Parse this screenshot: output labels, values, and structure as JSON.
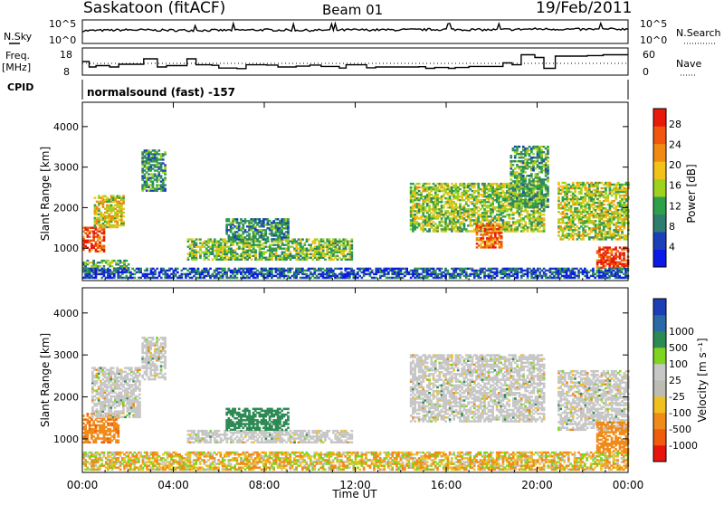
{
  "header": {
    "station": "Saskatoon (fitACF)",
    "beam": "Beam 01",
    "date": "19/Feb/2011"
  },
  "noise_panel": {
    "left_label": "N.Sky",
    "right_label": "N.Search",
    "ticks": [
      "10^5",
      "10^0"
    ]
  },
  "freq_panel": {
    "left_label_line1": "Freq.",
    "left_label_line2": "[MHz]",
    "right_label": "Nave",
    "left_ticks": [
      "18",
      "8"
    ],
    "right_ticks": [
      "60",
      "0"
    ]
  },
  "cpid": {
    "label": "CPID",
    "program": "normalsound (fast) -157"
  },
  "colors": {
    "power": [
      "#0b1ae6",
      "#1b3fb8",
      "#2f7d6e",
      "#2fa04a",
      "#9ed21f",
      "#f0c21a",
      "#f08a12",
      "#f0560c",
      "#e81a0a"
    ],
    "velocity": [
      "#e8150f",
      "#f05c0c",
      "#f08b1a",
      "#f0c020",
      "#bcbcb4",
      "#c7c7c7",
      "#7fd41f",
      "#2e8a55",
      "#2a6aa6",
      "#1c3fb5"
    ],
    "ground_scatter": "#bebebe"
  },
  "chart_data": [
    {
      "type": "line",
      "name": "noise-panel",
      "x_range_hours": [
        0,
        24
      ],
      "y_scale": "log",
      "y_ticks": [
        "10^0",
        "10^5"
      ],
      "series": [
        {
          "name": "N.Sky",
          "x": [
            0,
            2,
            4,
            6,
            8,
            10,
            12,
            14,
            16,
            18,
            20,
            22,
            24
          ],
          "y_log10": [
            2.8,
            3.0,
            2.9,
            2.9,
            3.0,
            2.9,
            3.0,
            3.0,
            3.1,
            3.0,
            3.2,
            3.1,
            3.2
          ]
        }
      ]
    },
    {
      "type": "line",
      "name": "frequency-panel",
      "x_range_hours": [
        0,
        24
      ],
      "ylabel": "Freq. [MHz]",
      "ylim": [
        8,
        18
      ],
      "y2label": "Nave",
      "y2lim": [
        0,
        60
      ],
      "series": [
        {
          "name": "Freq.",
          "step_x": [
            0,
            0.3,
            0.6,
            1.2,
            1.6,
            2.7,
            3.3,
            3.7,
            4.6,
            5.0,
            5.7,
            6.0,
            6.8,
            7.2,
            8.1,
            8.6,
            9.4,
            10.0,
            10.5,
            11.3,
            11.6,
            12.5,
            12.9,
            14.4,
            14.8,
            15.1,
            15.5,
            16.1,
            16.4,
            17.0,
            17.6,
            18.5,
            18.9,
            19.3,
            19.9,
            20.3,
            20.8,
            21.3,
            22.2,
            22.9,
            24
          ],
          "step_y": [
            13,
            11,
            11.5,
            11,
            12,
            14,
            11,
            11.5,
            14,
            11.8,
            11.6,
            10.6,
            10.4,
            11.8,
            11.7,
            11,
            11.3,
            11.7,
            11.2,
            10.6,
            11.8,
            10.7,
            11,
            11,
            11.1,
            10.5,
            10.8,
            10.5,
            10.8,
            11.2,
            11.2,
            12.5,
            11.8,
            15.5,
            14.5,
            10.5,
            15,
            15,
            15.2,
            15.5,
            15.5
          ]
        },
        {
          "name": "Nave",
          "style": "dotted",
          "constant": 26
        }
      ]
    },
    {
      "type": "heatmap",
      "name": "power-panel",
      "title": "",
      "xlabel": "",
      "ylabel": "Slant Range [km]",
      "x_range_hours": [
        0,
        24
      ],
      "xlim_labels": [
        "00:00",
        "04:00",
        "08:00",
        "12:00",
        "16:00",
        "20:00",
        "00:00"
      ],
      "ylim": [
        200,
        4600
      ],
      "y_ticks": [
        1000,
        2000,
        3000,
        4000
      ],
      "colorbar": {
        "label": "Power [dB]",
        "ticks": [
          4,
          8,
          12,
          16,
          20,
          24,
          28
        ],
        "range": [
          0,
          31
        ]
      },
      "scatter_regions": [
        {
          "t_start": 0.0,
          "t_end": 0.9,
          "r_min": 900,
          "r_max": 1500,
          "level": 26
        },
        {
          "t_start": 0.5,
          "t_end": 1.8,
          "r_min": 1500,
          "r_max": 2300,
          "level": 18
        },
        {
          "t_start": 0.0,
          "t_end": 2.0,
          "r_min": 400,
          "r_max": 700,
          "level": 12
        },
        {
          "t_start": 2.6,
          "t_end": 3.6,
          "r_min": 2400,
          "r_max": 3400,
          "level": 10
        },
        {
          "t_start": 4.6,
          "t_end": 11.8,
          "r_min": 700,
          "r_max": 1200,
          "level": 14
        },
        {
          "t_start": 6.3,
          "t_end": 9.0,
          "r_min": 1200,
          "r_max": 1700,
          "level": 10
        },
        {
          "t_start": 14.4,
          "t_end": 20.3,
          "r_min": 1400,
          "r_max": 2600,
          "level": 15
        },
        {
          "t_start": 17.3,
          "t_end": 18.4,
          "r_min": 1000,
          "r_max": 1600,
          "level": 24
        },
        {
          "t_start": 18.8,
          "t_end": 20.5,
          "r_min": 2000,
          "r_max": 3500,
          "level": 12
        },
        {
          "t_start": 20.9,
          "t_end": 24.0,
          "r_min": 1200,
          "r_max": 2600,
          "level": 16
        },
        {
          "t_start": 22.6,
          "t_end": 24.0,
          "r_min": 500,
          "r_max": 1000,
          "level": 28
        },
        {
          "t_start": 0.0,
          "t_end": 24.0,
          "r_min": 250,
          "r_max": 500,
          "level": 6
        }
      ]
    },
    {
      "type": "heatmap",
      "name": "velocity-panel",
      "title": "",
      "xlabel": "Time UT",
      "ylabel": "Slant Range [km]",
      "x_range_hours": [
        0,
        24
      ],
      "x_tick_labels": [
        "00:00",
        "04:00",
        "08:00",
        "12:00",
        "16:00",
        "20:00",
        "00:00"
      ],
      "ylim": [
        200,
        4600
      ],
      "y_ticks": [
        1000,
        2000,
        3000,
        4000
      ],
      "colorbar": {
        "label": "Velocity [m s⁻¹]",
        "ticks": [
          -1000,
          -500,
          -100,
          -25,
          25,
          100,
          500,
          1000
        ]
      },
      "scatter_regions": [
        {
          "t_start": 0.0,
          "t_end": 1.6,
          "r_min": 900,
          "r_max": 1600,
          "velocity": -400
        },
        {
          "t_start": 0.4,
          "t_end": 2.5,
          "r_min": 1500,
          "r_max": 2700,
          "velocity": 0
        },
        {
          "t_start": 2.6,
          "t_end": 3.6,
          "r_min": 2400,
          "r_max": 3400,
          "velocity": 0
        },
        {
          "t_start": 4.6,
          "t_end": 11.8,
          "r_min": 900,
          "r_max": 1200,
          "velocity": 0
        },
        {
          "t_start": 6.3,
          "t_end": 9.0,
          "r_min": 1200,
          "r_max": 1700,
          "velocity": 300
        },
        {
          "t_start": 14.4,
          "t_end": 20.3,
          "r_min": 1400,
          "r_max": 3000,
          "velocity": 0
        },
        {
          "t_start": 20.9,
          "t_end": 24.0,
          "r_min": 1200,
          "r_max": 2600,
          "velocity": 0
        },
        {
          "t_start": 22.6,
          "t_end": 24.0,
          "r_min": 600,
          "r_max": 1400,
          "velocity": -350
        },
        {
          "t_start": 0.0,
          "t_end": 24.0,
          "r_min": 250,
          "r_max": 700,
          "velocity": -60
        }
      ]
    }
  ]
}
